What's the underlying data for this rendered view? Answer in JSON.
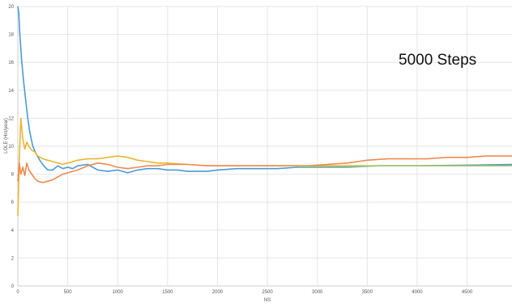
{
  "chart_data": {
    "type": "line",
    "title": "",
    "xlabel": "NS",
    "ylabel": "LOLE (Hrs/year)",
    "xlim": [
      0,
      5000
    ],
    "ylim": [
      0,
      20
    ],
    "x_ticks": [
      "0",
      "500",
      "1000",
      "1500",
      "2000",
      "2500",
      "3000",
      "3500",
      "4000",
      "4500"
    ],
    "y_ticks": [
      "0",
      "2",
      "4",
      "6",
      "8",
      "10",
      "12",
      "14",
      "16",
      "18",
      "20"
    ],
    "grid": true,
    "annotation": "5000 Steps",
    "series": [
      {
        "color": "#4a9ad6",
        "points": [
          [
            0,
            20
          ],
          [
            10,
            19.5
          ],
          [
            20,
            18
          ],
          [
            40,
            16
          ],
          [
            60,
            14.5
          ],
          [
            80,
            13.2
          ],
          [
            100,
            12
          ],
          [
            120,
            11
          ],
          [
            150,
            10
          ],
          [
            180,
            9.5
          ],
          [
            220,
            9
          ],
          [
            260,
            8.6
          ],
          [
            300,
            8.3
          ],
          [
            350,
            8.3
          ],
          [
            400,
            8.6
          ],
          [
            450,
            8.4
          ],
          [
            500,
            8.5
          ],
          [
            550,
            8.4
          ],
          [
            600,
            8.6
          ],
          [
            700,
            8.7
          ],
          [
            800,
            8.3
          ],
          [
            900,
            8.2
          ],
          [
            1000,
            8.3
          ],
          [
            1100,
            8.1
          ],
          [
            1200,
            8.3
          ],
          [
            1300,
            8.4
          ],
          [
            1400,
            8.4
          ],
          [
            1500,
            8.3
          ],
          [
            1600,
            8.3
          ],
          [
            1700,
            8.2
          ],
          [
            1800,
            8.2
          ],
          [
            1900,
            8.2
          ],
          [
            2000,
            8.3
          ],
          [
            2200,
            8.4
          ],
          [
            2400,
            8.4
          ],
          [
            2600,
            8.4
          ],
          [
            2800,
            8.5
          ],
          [
            3000,
            8.5
          ],
          [
            3300,
            8.5
          ],
          [
            3600,
            8.6
          ],
          [
            4000,
            8.6
          ],
          [
            4500,
            8.65
          ],
          [
            5000,
            8.7
          ]
        ]
      },
      {
        "color": "#e8b632",
        "points": [
          [
            0,
            5
          ],
          [
            15,
            9
          ],
          [
            30,
            12
          ],
          [
            50,
            10.5
          ],
          [
            70,
            9.8
          ],
          [
            90,
            10.3
          ],
          [
            110,
            10
          ],
          [
            140,
            9.7
          ],
          [
            170,
            9.6
          ],
          [
            200,
            9.3
          ],
          [
            250,
            9.1
          ],
          [
            300,
            9
          ],
          [
            350,
            8.9
          ],
          [
            400,
            8.8
          ],
          [
            450,
            8.7
          ],
          [
            500,
            8.8
          ],
          [
            600,
            9
          ],
          [
            700,
            9.1
          ],
          [
            800,
            9.1
          ],
          [
            900,
            9.2
          ],
          [
            1000,
            9.3
          ],
          [
            1100,
            9.2
          ],
          [
            1200,
            9
          ],
          [
            1300,
            8.9
          ],
          [
            1400,
            8.8
          ],
          [
            1500,
            8.8
          ],
          [
            1700,
            8.7
          ],
          [
            1900,
            8.6
          ],
          [
            2100,
            8.6
          ],
          [
            2300,
            8.6
          ],
          [
            2500,
            8.6
          ],
          [
            2800,
            8.6
          ],
          [
            3100,
            8.6
          ],
          [
            3500,
            8.6
          ],
          [
            4000,
            8.6
          ],
          [
            4500,
            8.6
          ],
          [
            5000,
            8.6
          ]
        ]
      },
      {
        "color": "#ee8a4e",
        "points": [
          [
            0,
            7.5
          ],
          [
            15,
            8.8
          ],
          [
            30,
            8
          ],
          [
            50,
            8.5
          ],
          [
            70,
            7.9
          ],
          [
            90,
            8.8
          ],
          [
            110,
            8.3
          ],
          [
            140,
            8
          ],
          [
            170,
            7.7
          ],
          [
            200,
            7.5
          ],
          [
            250,
            7.4
          ],
          [
            300,
            7.5
          ],
          [
            350,
            7.6
          ],
          [
            400,
            7.8
          ],
          [
            450,
            8
          ],
          [
            500,
            8.1
          ],
          [
            600,
            8.3
          ],
          [
            700,
            8.6
          ],
          [
            800,
            8.8
          ],
          [
            900,
            8.7
          ],
          [
            1000,
            8.5
          ],
          [
            1100,
            8.4
          ],
          [
            1200,
            8.5
          ],
          [
            1300,
            8.6
          ],
          [
            1400,
            8.6
          ],
          [
            1500,
            8.7
          ],
          [
            1700,
            8.7
          ],
          [
            1900,
            8.6
          ],
          [
            2100,
            8.6
          ],
          [
            2300,
            8.6
          ],
          [
            2500,
            8.6
          ],
          [
            2700,
            8.6
          ],
          [
            2900,
            8.6
          ],
          [
            3100,
            8.7
          ],
          [
            3300,
            8.8
          ],
          [
            3500,
            9
          ],
          [
            3700,
            9.1
          ],
          [
            3900,
            9.1
          ],
          [
            4100,
            9.1
          ],
          [
            4300,
            9.2
          ],
          [
            4500,
            9.2
          ],
          [
            4700,
            9.3
          ],
          [
            5000,
            9.3
          ]
        ]
      },
      {
        "color": "#a3c46a",
        "points": [
          [
            2800,
            8.55
          ],
          [
            3000,
            8.55
          ],
          [
            3300,
            8.55
          ],
          [
            3600,
            8.6
          ],
          [
            4000,
            8.6
          ],
          [
            4500,
            8.6
          ],
          [
            5000,
            8.6
          ]
        ]
      }
    ]
  }
}
